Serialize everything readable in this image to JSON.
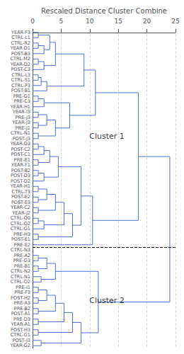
{
  "chart_data": {
    "type": "dendrogram",
    "title": "Rescaled Distance Cluster Combine",
    "categories": [
      "YEAR-F3",
      "CTRL-L1",
      "CTRL-R2",
      "YEAR-D1",
      "POST-B3",
      "CTRL-M2",
      "YEAR-D2",
      "POST-C3",
      "CTRL-L3",
      "CTRL-S1",
      "CTRL-P3",
      "POST-B1",
      "PRE-G1",
      "PRE-C3",
      "YEAR-H1",
      "YEAR-I3",
      "PRE-J3",
      "YEAR-J3",
      "PRE-J1",
      "CTRL-N1",
      "POST-J3",
      "YEAR-D3",
      "POST-C2",
      "POST-C1",
      "PRE-E1",
      "YEAR-F1",
      "POST-B2",
      "POST-D3",
      "POST-D2",
      "YEAR-H1",
      "CTRL-T3",
      "POST-E2",
      "POST-E3",
      "YEAR-C2",
      "YEAR-J2",
      "CTRL-Q0",
      "CTRL-Q2",
      "CTRL-G1",
      "PRE-H3",
      "POST-E1",
      "PRE-E2",
      "CTRL-N3",
      "PRE-A2",
      "PRE-G3",
      "PRE-B1",
      "CTRL-N2",
      "CTRL-N1",
      "CTRL-Q2",
      "PRE-I1",
      "PRE-F3",
      "POST-H2",
      "PRE-A3",
      "PRE-B2",
      "POST-A1",
      "PRE-D3",
      "YEAR-A1",
      "POST-H3",
      "CTRL-G1",
      "POST-J3",
      "YEAR-G2"
    ],
    "linkages": [
      [
        0,
        1,
        1.0
      ],
      [
        2,
        3,
        1.0
      ],
      [
        2,
        4,
        2.0
      ],
      [
        0,
        2,
        3.0
      ],
      [
        5,
        6,
        1.0
      ],
      [
        5,
        7,
        2.0
      ],
      [
        0,
        5,
        4.0
      ],
      [
        8,
        9,
        1.0
      ],
      [
        8,
        10,
        1.5
      ],
      [
        8,
        11,
        2.5
      ],
      [
        0,
        8,
        9.0
      ],
      [
        12,
        13,
        1.0
      ],
      [
        12,
        14,
        2.0
      ],
      [
        15,
        16,
        1.0
      ],
      [
        17,
        18,
        1.0
      ],
      [
        15,
        17,
        2.5
      ],
      [
        19,
        20,
        1.0
      ],
      [
        15,
        19,
        4.0
      ],
      [
        12,
        15,
        6.5
      ],
      [
        0,
        12,
        11.0
      ],
      [
        21,
        22,
        1.0
      ],
      [
        21,
        23,
        2.0
      ],
      [
        24,
        25,
        1.0
      ],
      [
        21,
        24,
        3.0
      ],
      [
        26,
        27,
        1.0
      ],
      [
        26,
        28,
        2.0
      ],
      [
        21,
        26,
        4.5
      ],
      [
        29,
        30,
        1.0
      ],
      [
        31,
        32,
        1.0
      ],
      [
        29,
        31,
        2.5
      ],
      [
        33,
        34,
        1.0
      ],
      [
        29,
        33,
        4.0
      ],
      [
        35,
        36,
        1.0
      ],
      [
        35,
        37,
        2.0
      ],
      [
        29,
        35,
        5.5
      ],
      [
        38,
        39,
        1.0
      ],
      [
        29,
        38,
        7.0
      ],
      [
        21,
        29,
        8.5
      ],
      [
        21,
        40,
        10.5
      ],
      [
        0,
        21,
        18.5
      ],
      [
        42,
        43,
        1.0
      ],
      [
        44,
        45,
        1.0
      ],
      [
        42,
        44,
        2.5
      ],
      [
        46,
        47,
        1.5
      ],
      [
        42,
        46,
        4.0
      ],
      [
        48,
        49,
        1.0
      ],
      [
        50,
        51,
        1.0
      ],
      [
        48,
        50,
        2.5
      ],
      [
        52,
        53,
        1.0
      ],
      [
        48,
        52,
        4.0
      ],
      [
        54,
        55,
        1.0
      ],
      [
        48,
        54,
        5.5
      ],
      [
        56,
        57,
        1.0
      ],
      [
        48,
        56,
        7.0
      ],
      [
        58,
        59,
        1.5
      ],
      [
        48,
        58,
        8.5
      ],
      [
        42,
        48,
        11.5
      ],
      [
        0,
        42,
        24.0
      ]
    ],
    "dashed_between": [
      40,
      41
    ],
    "annotations": [
      {
        "text": "Cluster 1",
        "x": 13.0,
        "y": 19.5
      },
      {
        "text": "Cluster 2",
        "x": 13.0,
        "y": 50.5
      }
    ],
    "xlim": [
      0,
      25
    ],
    "xticks": [
      0,
      5,
      10,
      15,
      20,
      25
    ],
    "grid": true
  }
}
